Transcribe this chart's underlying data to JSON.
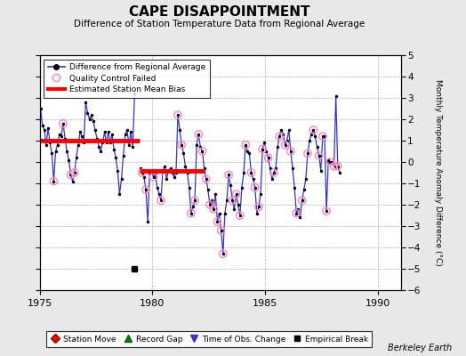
{
  "title": "CAPE DISAPPOINTMENT",
  "subtitle": "Difference of Station Temperature Data from Regional Average",
  "ylabel": "Monthly Temperature Anomaly Difference (°C)",
  "xlim": [
    1975,
    1991
  ],
  "ylim": [
    -6,
    5
  ],
  "yticks": [
    -6,
    -5,
    -4,
    -3,
    -2,
    -1,
    0,
    1,
    2,
    3,
    4,
    5
  ],
  "xticks": [
    1975,
    1980,
    1985,
    1990
  ],
  "background_color": "#e8e8e8",
  "plot_bg_color": "#ffffff",
  "grid_color": "#b0b0b0",
  "line_color": "#3333cc",
  "marker_color": "#000000",
  "qc_color": "#ff80c0",
  "bias_color": "#ff0000",
  "watermark": "Berkeley Earth",
  "bias_segments": [
    {
      "x_start": 1975.0,
      "x_end": 1979.42,
      "y": 1.0
    },
    {
      "x_start": 1979.45,
      "x_end": 1982.3,
      "y": -0.42
    }
  ],
  "empirical_break_x": 1979.2,
  "empirical_break_y": -5.0,
  "gap_x": 1979.42,
  "time_series": [
    [
      1975.042,
      2.5
    ],
    [
      1975.125,
      1.7
    ],
    [
      1975.208,
      1.5
    ],
    [
      1975.292,
      0.8
    ],
    [
      1975.375,
      1.6
    ],
    [
      1975.458,
      0.9
    ],
    [
      1975.542,
      0.4
    ],
    [
      1975.625,
      -0.9
    ],
    [
      1975.708,
      0.5
    ],
    [
      1975.792,
      0.8
    ],
    [
      1975.875,
      1.3
    ],
    [
      1975.958,
      1.2
    ],
    [
      1976.042,
      1.8
    ],
    [
      1976.125,
      1.1
    ],
    [
      1976.208,
      0.5
    ],
    [
      1976.292,
      0.1
    ],
    [
      1976.375,
      -0.6
    ],
    [
      1976.458,
      -0.9
    ],
    [
      1976.542,
      -0.5
    ],
    [
      1976.625,
      0.2
    ],
    [
      1976.708,
      0.8
    ],
    [
      1976.792,
      1.4
    ],
    [
      1976.875,
      1.2
    ],
    [
      1976.958,
      0.9
    ],
    [
      1977.042,
      2.8
    ],
    [
      1977.125,
      2.3
    ],
    [
      1977.208,
      2.0
    ],
    [
      1977.292,
      2.2
    ],
    [
      1977.375,
      1.9
    ],
    [
      1977.458,
      1.5
    ],
    [
      1977.542,
      1.1
    ],
    [
      1977.625,
      0.7
    ],
    [
      1977.708,
      0.5
    ],
    [
      1977.792,
      0.9
    ],
    [
      1977.875,
      1.4
    ],
    [
      1977.958,
      0.9
    ],
    [
      1978.042,
      1.4
    ],
    [
      1978.125,
      0.9
    ],
    [
      1978.208,
      1.3
    ],
    [
      1978.292,
      0.6
    ],
    [
      1978.375,
      0.2
    ],
    [
      1978.458,
      -0.4
    ],
    [
      1978.542,
      -1.5
    ],
    [
      1978.625,
      -0.8
    ],
    [
      1978.708,
      0.3
    ],
    [
      1978.792,
      1.3
    ],
    [
      1978.875,
      1.5
    ],
    [
      1978.958,
      0.8
    ],
    [
      1979.042,
      1.4
    ],
    [
      1979.125,
      0.7
    ],
    [
      1979.208,
      3.2
    ],
    [
      1979.458,
      -0.3
    ],
    [
      1979.542,
      -0.5
    ],
    [
      1979.625,
      -0.7
    ],
    [
      1979.708,
      -1.3
    ],
    [
      1979.792,
      -2.8
    ],
    [
      1979.875,
      -0.5
    ],
    [
      1979.958,
      -0.4
    ],
    [
      1980.042,
      -0.7
    ],
    [
      1980.125,
      -0.5
    ],
    [
      1980.208,
      -1.2
    ],
    [
      1980.292,
      -1.5
    ],
    [
      1980.375,
      -1.8
    ],
    [
      1980.458,
      -0.4
    ],
    [
      1980.542,
      -0.2
    ],
    [
      1980.625,
      -0.8
    ],
    [
      1980.708,
      -0.4
    ],
    [
      1980.792,
      -0.3
    ],
    [
      1980.875,
      -0.5
    ],
    [
      1980.958,
      -0.7
    ],
    [
      1981.042,
      -0.5
    ],
    [
      1981.125,
      2.2
    ],
    [
      1981.208,
      1.5
    ],
    [
      1981.292,
      0.8
    ],
    [
      1981.375,
      0.4
    ],
    [
      1981.458,
      -0.2
    ],
    [
      1981.542,
      -0.5
    ],
    [
      1981.625,
      -1.2
    ],
    [
      1981.708,
      -2.4
    ],
    [
      1981.792,
      -2.1
    ],
    [
      1981.875,
      -1.8
    ],
    [
      1981.958,
      0.8
    ],
    [
      1982.042,
      1.3
    ],
    [
      1982.125,
      0.7
    ],
    [
      1982.208,
      0.5
    ],
    [
      1982.292,
      -0.3
    ],
    [
      1982.375,
      -0.8
    ],
    [
      1982.458,
      -1.3
    ],
    [
      1982.542,
      -2.0
    ],
    [
      1982.625,
      -1.8
    ],
    [
      1982.708,
      -2.2
    ],
    [
      1982.792,
      -1.5
    ],
    [
      1982.875,
      -2.8
    ],
    [
      1982.958,
      -2.4
    ],
    [
      1983.042,
      -3.2
    ],
    [
      1983.125,
      -4.3
    ],
    [
      1983.208,
      -2.4
    ],
    [
      1983.292,
      -1.8
    ],
    [
      1983.375,
      -0.6
    ],
    [
      1983.458,
      -1.1
    ],
    [
      1983.542,
      -1.8
    ],
    [
      1983.625,
      -2.2
    ],
    [
      1983.708,
      -1.5
    ],
    [
      1983.792,
      -2.0
    ],
    [
      1983.875,
      -2.5
    ],
    [
      1983.958,
      -1.2
    ],
    [
      1984.042,
      -0.5
    ],
    [
      1984.125,
      0.8
    ],
    [
      1984.208,
      0.5
    ],
    [
      1984.292,
      0.4
    ],
    [
      1984.375,
      -0.5
    ],
    [
      1984.458,
      -0.8
    ],
    [
      1984.542,
      -1.2
    ],
    [
      1984.625,
      -2.4
    ],
    [
      1984.708,
      -2.1
    ],
    [
      1984.792,
      -1.5
    ],
    [
      1984.875,
      0.6
    ],
    [
      1984.958,
      0.9
    ],
    [
      1985.042,
      0.5
    ],
    [
      1985.125,
      0.2
    ],
    [
      1985.208,
      -0.3
    ],
    [
      1985.292,
      -0.8
    ],
    [
      1985.375,
      -0.5
    ],
    [
      1985.458,
      -0.3
    ],
    [
      1985.542,
      0.7
    ],
    [
      1985.625,
      1.2
    ],
    [
      1985.708,
      1.5
    ],
    [
      1985.792,
      1.3
    ],
    [
      1985.875,
      0.8
    ],
    [
      1985.958,
      1.0
    ],
    [
      1986.042,
      1.5
    ],
    [
      1986.125,
      0.5
    ],
    [
      1986.208,
      -0.3
    ],
    [
      1986.292,
      -1.2
    ],
    [
      1986.375,
      -2.4
    ],
    [
      1986.458,
      -2.2
    ],
    [
      1986.542,
      -2.6
    ],
    [
      1986.625,
      -1.8
    ],
    [
      1986.708,
      -1.3
    ],
    [
      1986.792,
      -0.8
    ],
    [
      1986.875,
      0.4
    ],
    [
      1986.958,
      1.0
    ],
    [
      1987.042,
      1.3
    ],
    [
      1987.125,
      1.5
    ],
    [
      1987.208,
      1.2
    ],
    [
      1987.292,
      0.7
    ],
    [
      1987.375,
      0.3
    ],
    [
      1987.458,
      -0.4
    ],
    [
      1987.542,
      1.2
    ],
    [
      1987.625,
      1.2
    ],
    [
      1987.708,
      -2.3
    ],
    [
      1987.792,
      0.1
    ],
    [
      1987.875,
      0.0
    ],
    [
      1987.958,
      0.0
    ],
    [
      1988.042,
      -0.2
    ],
    [
      1988.125,
      3.1
    ],
    [
      1988.208,
      -0.2
    ],
    [
      1988.292,
      -0.5
    ]
  ],
  "qc_failed": [
    [
      1975.625,
      -0.9
    ],
    [
      1976.042,
      1.8
    ],
    [
      1976.375,
      -0.6
    ],
    [
      1976.542,
      -0.5
    ],
    [
      1979.542,
      -0.5
    ],
    [
      1979.708,
      -1.3
    ],
    [
      1980.042,
      -0.7
    ],
    [
      1980.375,
      -1.8
    ],
    [
      1981.125,
      2.2
    ],
    [
      1981.292,
      0.8
    ],
    [
      1981.708,
      -2.4
    ],
    [
      1981.875,
      -1.8
    ],
    [
      1982.042,
      1.3
    ],
    [
      1982.208,
      0.5
    ],
    [
      1982.375,
      -0.8
    ],
    [
      1982.542,
      -2.0
    ],
    [
      1982.708,
      -2.2
    ],
    [
      1982.875,
      -2.8
    ],
    [
      1983.042,
      -3.2
    ],
    [
      1983.125,
      -4.3
    ],
    [
      1983.375,
      -0.6
    ],
    [
      1983.542,
      -1.8
    ],
    [
      1983.708,
      -1.5
    ],
    [
      1983.875,
      -2.5
    ],
    [
      1984.125,
      0.8
    ],
    [
      1984.375,
      -0.5
    ],
    [
      1984.542,
      -1.2
    ],
    [
      1984.708,
      -2.1
    ],
    [
      1984.875,
      0.6
    ],
    [
      1985.125,
      0.2
    ],
    [
      1985.375,
      -0.5
    ],
    [
      1985.625,
      1.2
    ],
    [
      1985.875,
      0.8
    ],
    [
      1986.125,
      0.5
    ],
    [
      1986.375,
      -2.4
    ],
    [
      1986.625,
      -1.8
    ],
    [
      1986.875,
      0.4
    ],
    [
      1987.125,
      1.5
    ],
    [
      1987.375,
      0.3
    ],
    [
      1987.542,
      1.2
    ],
    [
      1987.708,
      -2.3
    ],
    [
      1987.875,
      0.0
    ],
    [
      1988.042,
      -0.2
    ],
    [
      1988.208,
      -0.2
    ]
  ]
}
